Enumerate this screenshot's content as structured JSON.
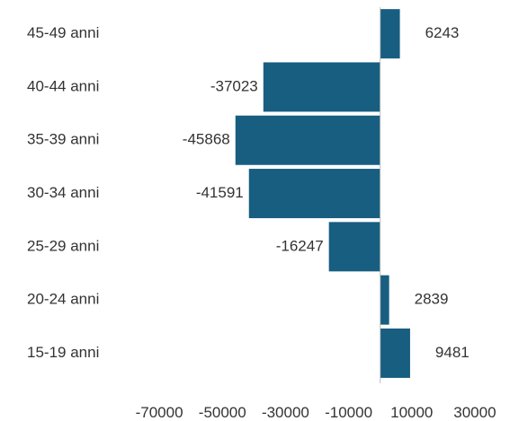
{
  "chart_data": {
    "type": "bar",
    "orientation": "horizontal",
    "categories": [
      "45-49 anni",
      "40-44 anni",
      "35-39 anni",
      "30-34 anni",
      "25-29 anni",
      "20-24 anni",
      "15-19 anni"
    ],
    "values": [
      6243,
      -37023,
      -45868,
      -41591,
      -16247,
      2839,
      9481
    ],
    "value_labels": [
      "6243",
      "-37023",
      "-45868",
      "-41591",
      "-16247",
      "2839",
      "9481"
    ],
    "xticks": [
      -70000,
      -50000,
      -30000,
      -10000,
      10000,
      30000
    ],
    "xtick_labels": [
      "-70000",
      "-50000",
      "-30000",
      "-10000",
      "10000",
      "30000"
    ],
    "xlim": [
      -80000,
      40000
    ],
    "title": "",
    "xlabel": "",
    "ylabel": "",
    "grid": false,
    "legend": "none",
    "colors": {
      "bar": "#175e80",
      "axis": "#bfbfbf",
      "text": "#333333"
    }
  }
}
